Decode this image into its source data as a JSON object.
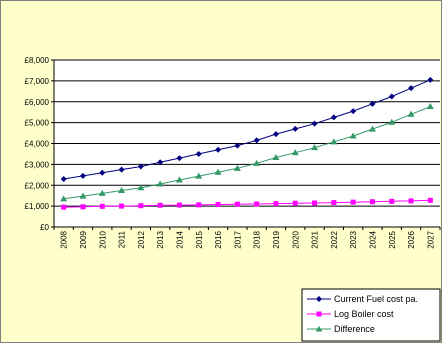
{
  "chart_data": {
    "type": "line",
    "x": [
      "2008",
      "2009",
      "2010",
      "2011",
      "2012",
      "2013",
      "2014",
      "2015",
      "2016",
      "2017",
      "2018",
      "2019",
      "2020",
      "2021",
      "2022",
      "2023",
      "2024",
      "2025",
      "2026",
      "2027"
    ],
    "ylim": [
      0,
      8000
    ],
    "ytick_labels": [
      "£0",
      "£1,000",
      "£2,000",
      "£3,000",
      "£4,000",
      "£5,000",
      "£6,000",
      "£7,000",
      "£8,000"
    ],
    "grid": true,
    "legend": "bottom-right",
    "series": [
      {
        "name": "Current Fuel cost pa.",
        "color": "#000080",
        "marker": "diamond",
        "values": [
          2300,
          2450,
          2600,
          2750,
          2900,
          3100,
          3300,
          3500,
          3700,
          3900,
          4150,
          4450,
          4700,
          4950,
          5250,
          5550,
          5900,
          6250,
          6650,
          7050
        ]
      },
      {
        "name": "Log Boiler cost",
        "color": "#ff00ff",
        "marker": "square",
        "values": [
          950,
          970,
          990,
          1000,
          1020,
          1040,
          1050,
          1060,
          1080,
          1090,
          1100,
          1120,
          1140,
          1150,
          1170,
          1190,
          1210,
          1230,
          1250,
          1280
        ]
      },
      {
        "name": "Difference",
        "color": "#339966",
        "marker": "triangle",
        "values": [
          1350,
          1480,
          1610,
          1750,
          1880,
          2060,
          2250,
          2440,
          2620,
          2810,
          3050,
          3330,
          3560,
          3800,
          4080,
          4360,
          4690,
          5020,
          5400,
          5770
        ]
      }
    ]
  }
}
